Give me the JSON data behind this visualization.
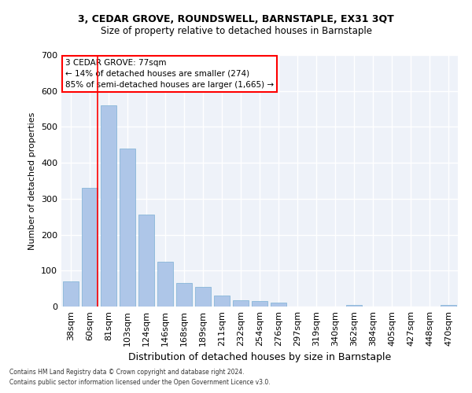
{
  "title_line1": "3, CEDAR GROVE, ROUNDSWELL, BARNSTAPLE, EX31 3QT",
  "title_line2": "Size of property relative to detached houses in Barnstaple",
  "xlabel": "Distribution of detached houses by size in Barnstaple",
  "ylabel": "Number of detached properties",
  "categories": [
    "38sqm",
    "60sqm",
    "81sqm",
    "103sqm",
    "124sqm",
    "146sqm",
    "168sqm",
    "189sqm",
    "211sqm",
    "232sqm",
    "254sqm",
    "276sqm",
    "297sqm",
    "319sqm",
    "340sqm",
    "362sqm",
    "384sqm",
    "405sqm",
    "427sqm",
    "448sqm",
    "470sqm"
  ],
  "values": [
    70,
    330,
    560,
    440,
    255,
    125,
    65,
    55,
    30,
    17,
    15,
    10,
    0,
    0,
    0,
    5,
    0,
    0,
    0,
    0,
    5
  ],
  "bar_color": "#aec6e8",
  "bar_edge_color": "#7bafd4",
  "annotation_line1": "3 CEDAR GROVE: 77sqm",
  "annotation_line2": "← 14% of detached houses are smaller (274)",
  "annotation_line3": "85% of semi-detached houses are larger (1,665) →",
  "annotation_box_color": "white",
  "annotation_box_edge_color": "red",
  "vline_color": "red",
  "vline_x": 1.4,
  "ylim": [
    0,
    700
  ],
  "yticks": [
    0,
    100,
    200,
    300,
    400,
    500,
    600,
    700
  ],
  "background_color": "#eef2f9",
  "grid_color": "white",
  "footer_line1": "Contains HM Land Registry data © Crown copyright and database right 2024.",
  "footer_line2": "Contains public sector information licensed under the Open Government Licence v3.0."
}
